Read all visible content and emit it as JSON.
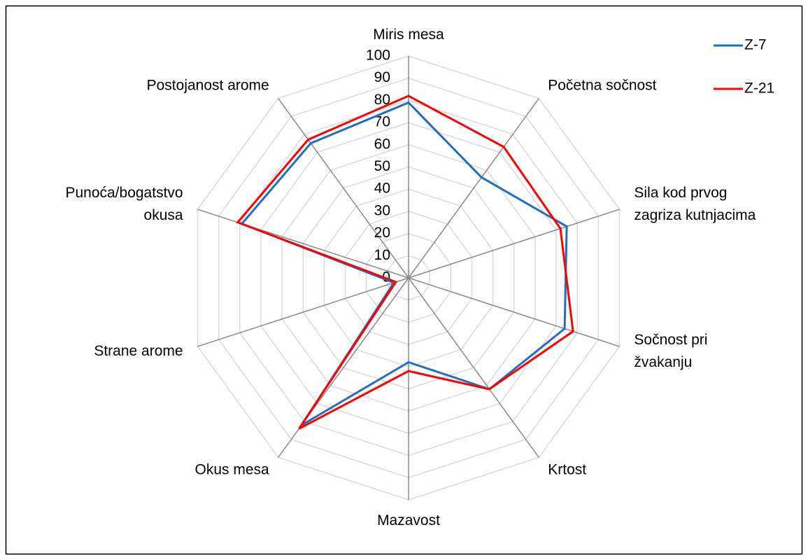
{
  "chart_data": {
    "type": "radar",
    "categories": [
      "Miris mesa",
      "Početna sočnost",
      "Sila kod prvog\nzagriza kutnjacima",
      "Sočnost pri\nžvakanju",
      "Krtost",
      "Mazavost",
      "Okus mesa",
      "Strane arome",
      "Punoća/bogatstvo\nokusa",
      "Postojanost arome"
    ],
    "series": [
      {
        "name": "Z-7",
        "color": "#1f6fc0",
        "values": [
          79,
          56,
          75,
          74,
          62,
          38,
          82,
          7,
          79,
          75
        ]
      },
      {
        "name": "Z-21",
        "color": "#ff0000",
        "values": [
          82,
          73,
          72,
          78,
          62,
          42,
          84,
          6,
          81,
          77
        ]
      }
    ],
    "ylim": [
      0,
      100
    ],
    "yticks": [
      0,
      10,
      20,
      30,
      40,
      50,
      60,
      70,
      80,
      90,
      100
    ],
    "grid": true,
    "legend": "top-right"
  }
}
